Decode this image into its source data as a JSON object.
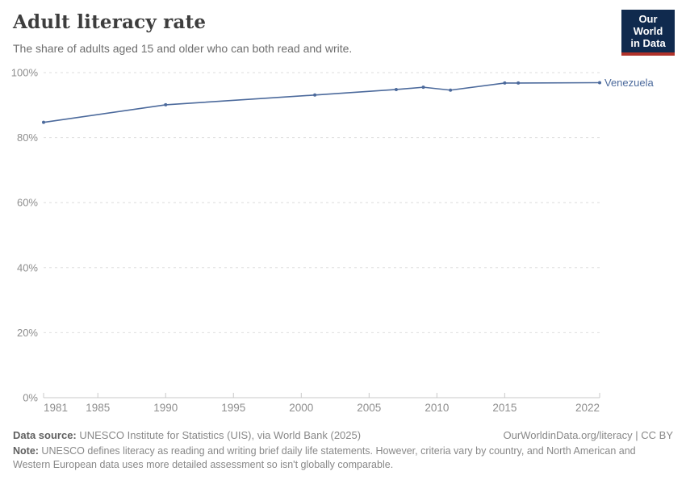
{
  "header": {
    "title": "Adult literacy rate",
    "subtitle": "The share of adults aged 15 and older who can both read and write.",
    "logo": {
      "line1": "Our World",
      "line2": "in Data"
    }
  },
  "chart_data": {
    "type": "line",
    "title": "Adult literacy rate",
    "xlabel": "",
    "ylabel": "",
    "xlim": [
      1981,
      2022
    ],
    "ylim": [
      0,
      100
    ],
    "grid": "horizontal-dashed",
    "legend_position": "end-of-line-label",
    "x_ticks": [
      {
        "value": 1981,
        "label": "1981"
      },
      {
        "value": 1985,
        "label": "1985"
      },
      {
        "value": 1990,
        "label": "1990"
      },
      {
        "value": 1995,
        "label": "1995"
      },
      {
        "value": 2000,
        "label": "2000"
      },
      {
        "value": 2005,
        "label": "2005"
      },
      {
        "value": 2010,
        "label": "2010"
      },
      {
        "value": 2015,
        "label": "2015"
      },
      {
        "value": 2022,
        "label": "2022"
      }
    ],
    "y_ticks": [
      {
        "value": 0,
        "label": "0%"
      },
      {
        "value": 20,
        "label": "20%"
      },
      {
        "value": 40,
        "label": "40%"
      },
      {
        "value": 60,
        "label": "60%"
      },
      {
        "value": 80,
        "label": "80%"
      },
      {
        "value": 100,
        "label": "100%"
      }
    ],
    "series": [
      {
        "name": "Venezuela",
        "color": "#4c6a9c",
        "points": [
          {
            "year": 1981,
            "value": 84.7
          },
          {
            "year": 1990,
            "value": 90.1
          },
          {
            "year": 2001,
            "value": 93.1
          },
          {
            "year": 2007,
            "value": 94.8
          },
          {
            "year": 2009,
            "value": 95.5
          },
          {
            "year": 2011,
            "value": 94.6
          },
          {
            "year": 2015,
            "value": 96.8
          },
          {
            "year": 2016,
            "value": 96.8
          },
          {
            "year": 2022,
            "value": 96.9
          }
        ]
      }
    ],
    "colors": {
      "gridline": "#dedede",
      "axis_line": "#c8c8c8",
      "tick_label": "#8e8e8e"
    }
  },
  "footer": {
    "datasource_label": "Data source:",
    "datasource_text": " UNESCO Institute for Statistics (UIS), via World Bank (2025)",
    "link_text": "OurWorldinData.org/literacy | CC BY",
    "note_label": "Note:",
    "note_text": " UNESCO defines literacy as reading and writing brief daily life statements. However, criteria vary by country, and North American and Western European data uses more detailed assessment so isn't globally comparable."
  }
}
